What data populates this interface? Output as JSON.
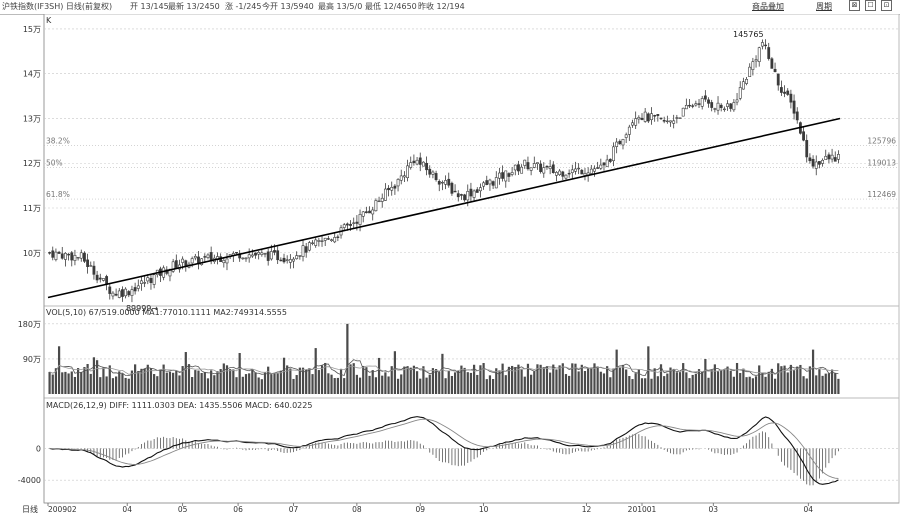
{
  "header": {
    "title": "沪铁指数(IF3SH) 日线(前复权)",
    "fields": [
      {
        "label": "开",
        "value": "13/145"
      },
      {
        "label": "最新",
        "value": "13/2450"
      },
      {
        "label": "涨",
        "value": "-1/245"
      },
      {
        "label": "今开",
        "value": "13/5940"
      },
      {
        "label": "最高",
        "value": "13/5/0"
      },
      {
        "label": "最低",
        "value": "12/4650"
      },
      {
        "label": "昨收",
        "value": "12/194"
      }
    ],
    "buttons": [
      "商品叠加",
      "周期"
    ],
    "window_controls": [
      "⊠",
      "☐",
      "⊡"
    ]
  },
  "colors": {
    "candle": "#3a3a3a",
    "trend": "#000000",
    "grid": "#c8c8c8",
    "fib": "#bbbbbb",
    "vol_bar": "#4a4a4a",
    "ma_line": "#555555",
    "macd_diff": "#111111",
    "macd_dea": "#888888"
  },
  "chart_data": [
    {
      "type": "candlestick",
      "panel": "price",
      "label": "K",
      "y_ticks": [
        {
          "value": 150000,
          "label": "15万"
        },
        {
          "value": 140000,
          "label": "14万"
        },
        {
          "value": 130000,
          "label": "13万"
        },
        {
          "value": 120000,
          "label": "12万"
        },
        {
          "value": 110000,
          "label": "11万"
        },
        {
          "value": 100000,
          "label": "10万"
        }
      ],
      "ylim": [
        89000,
        152000
      ],
      "fibonacci": [
        {
          "label": "38.2%",
          "value": 124000,
          "right_label": "125796"
        },
        {
          "label": "50%",
          "value": 119000,
          "right_label": "119013"
        },
        {
          "label": "61.8%",
          "value": 112000,
          "right_label": "112469"
        }
      ],
      "annotations": {
        "high": {
          "label": "145765",
          "value": 145765
        },
        "low": {
          "label": "89999→",
          "value": 89999
        }
      },
      "trend_line": {
        "start": [
          0,
          90000
        ],
        "end": [
          1,
          130000
        ]
      },
      "candles": []
    },
    {
      "type": "bar",
      "panel": "volume",
      "legend": "VOL(5,10) 67/519.0000 MA1:77010.1111 MA2:749314.5555",
      "y_ticks": [
        {
          "value": 180000,
          "label": "180万"
        },
        {
          "value": 90000,
          "label": "90万"
        }
      ],
      "ylim": [
        0,
        195000
      ],
      "values": []
    },
    {
      "type": "line",
      "panel": "macd",
      "legend": "MACD(26,12,9) DIFF: 1111.0303 DEA: 1435.5506 MACD: 640.0225",
      "y_ticks": [
        {
          "value": 0,
          "label": "0"
        },
        {
          "value": -4000,
          "label": "-4000"
        }
      ],
      "ylim": [
        -6500,
        4600
      ],
      "series": [
        {
          "id": "diff",
          "values": []
        },
        {
          "id": "dea",
          "values": []
        }
      ],
      "histogram": []
    }
  ],
  "x_axis": {
    "label": "日线",
    "ticks": [
      {
        "label": "200902",
        "pos": 0.0
      },
      {
        "label": "04",
        "pos": 0.1
      },
      {
        "label": "05",
        "pos": 0.17
      },
      {
        "label": "06",
        "pos": 0.24
      },
      {
        "label": "07",
        "pos": 0.31
      },
      {
        "label": "08",
        "pos": 0.39
      },
      {
        "label": "09",
        "pos": 0.47
      },
      {
        "label": "10",
        "pos": 0.55
      },
      {
        "label": "12",
        "pos": 0.68
      },
      {
        "label": "201001",
        "pos": 0.75
      },
      {
        "label": "03",
        "pos": 0.84
      },
      {
        "label": "04",
        "pos": 0.96
      }
    ]
  }
}
